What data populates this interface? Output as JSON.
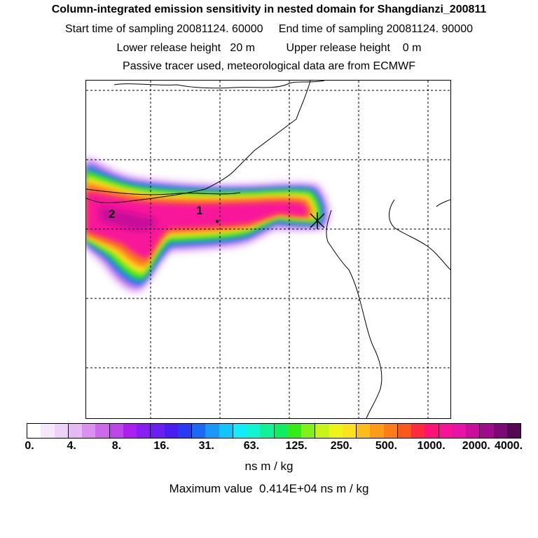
{
  "header": {
    "title": "Column-integrated emission sensitivity in nested domain for Shangdianzi_200811",
    "line2": "Start time of sampling 20081124. 60000     End time of sampling 20081124. 90000",
    "line3": "Lower release height   20 m          Upper release height    0 m",
    "line4": "Passive tracer used, meteorological data are from ECMWF"
  },
  "map": {
    "point_labels": [
      "1",
      "2"
    ],
    "receptor_marker": "release-site-star",
    "background": "#ffffff"
  },
  "colorbar": {
    "colors": [
      "#ffffff",
      "#f6e8fb",
      "#efd2f7",
      "#e6b9f4",
      "#d990ee",
      "#cb6aea",
      "#be45ea",
      "#ab20ee",
      "#8a1ef2",
      "#6a1ef0",
      "#4a1ef0",
      "#2a3af4",
      "#1a6af4",
      "#1a98f8",
      "#12c4fc",
      "#12ecfc",
      "#12f4d2",
      "#12f09a",
      "#12ec62",
      "#34ec1a",
      "#82f01a",
      "#c8f41a",
      "#eef41a",
      "#fce21a",
      "#fcbc1a",
      "#fc9a1a",
      "#fc7c1a",
      "#fc581a",
      "#fc2a3a",
      "#fc1278",
      "#f8129a",
      "#e812a8",
      "#c80e9a",
      "#a00a8c",
      "#7c0a76",
      "#540a52"
    ],
    "tick_labels": [
      "0.",
      "4.",
      "8.",
      "16.",
      "31.",
      "63.",
      "125.",
      "250.",
      "500.",
      "1000.",
      "2000.",
      "4000."
    ],
    "unit": "ns m / kg"
  },
  "footer": {
    "maximum": "Maximum value  0.414E+04 ns m / kg"
  }
}
